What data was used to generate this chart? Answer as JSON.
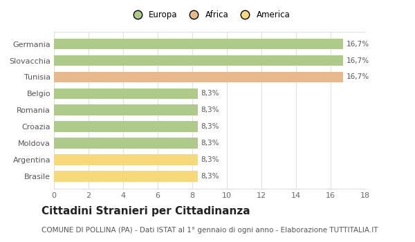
{
  "categories": [
    "Brasile",
    "Argentina",
    "Moldova",
    "Croazia",
    "Romania",
    "Belgio",
    "Tunisia",
    "Slovacchia",
    "Germania"
  ],
  "values": [
    8.3,
    8.3,
    8.3,
    8.3,
    8.3,
    8.3,
    16.7,
    16.7,
    16.7
  ],
  "colors": [
    "#f5d97a",
    "#f5d97a",
    "#aeca8a",
    "#aeca8a",
    "#aeca8a",
    "#aeca8a",
    "#e8b98a",
    "#aeca8a",
    "#aeca8a"
  ],
  "labels": [
    "8,3%",
    "8,3%",
    "8,3%",
    "8,3%",
    "8,3%",
    "8,3%",
    "16,7%",
    "16,7%",
    "16,7%"
  ],
  "legend": [
    {
      "label": "Europa",
      "color": "#aeca8a"
    },
    {
      "label": "Africa",
      "color": "#e8b98a"
    },
    {
      "label": "America",
      "color": "#f5d97a"
    }
  ],
  "xlim": [
    0,
    18
  ],
  "xticks": [
    0,
    2,
    4,
    6,
    8,
    10,
    12,
    14,
    16,
    18
  ],
  "title": "Cittadini Stranieri per Cittadinanza",
  "subtitle": "COMUNE DI POLLINA (PA) - Dati ISTAT al 1° gennaio di ogni anno - Elaborazione TUTTITALIA.IT",
  "background_color": "#ffffff",
  "grid_color": "#dddddd",
  "bar_label_fontsize": 7.5,
  "axis_label_fontsize": 8,
  "title_fontsize": 11,
  "subtitle_fontsize": 7.5
}
